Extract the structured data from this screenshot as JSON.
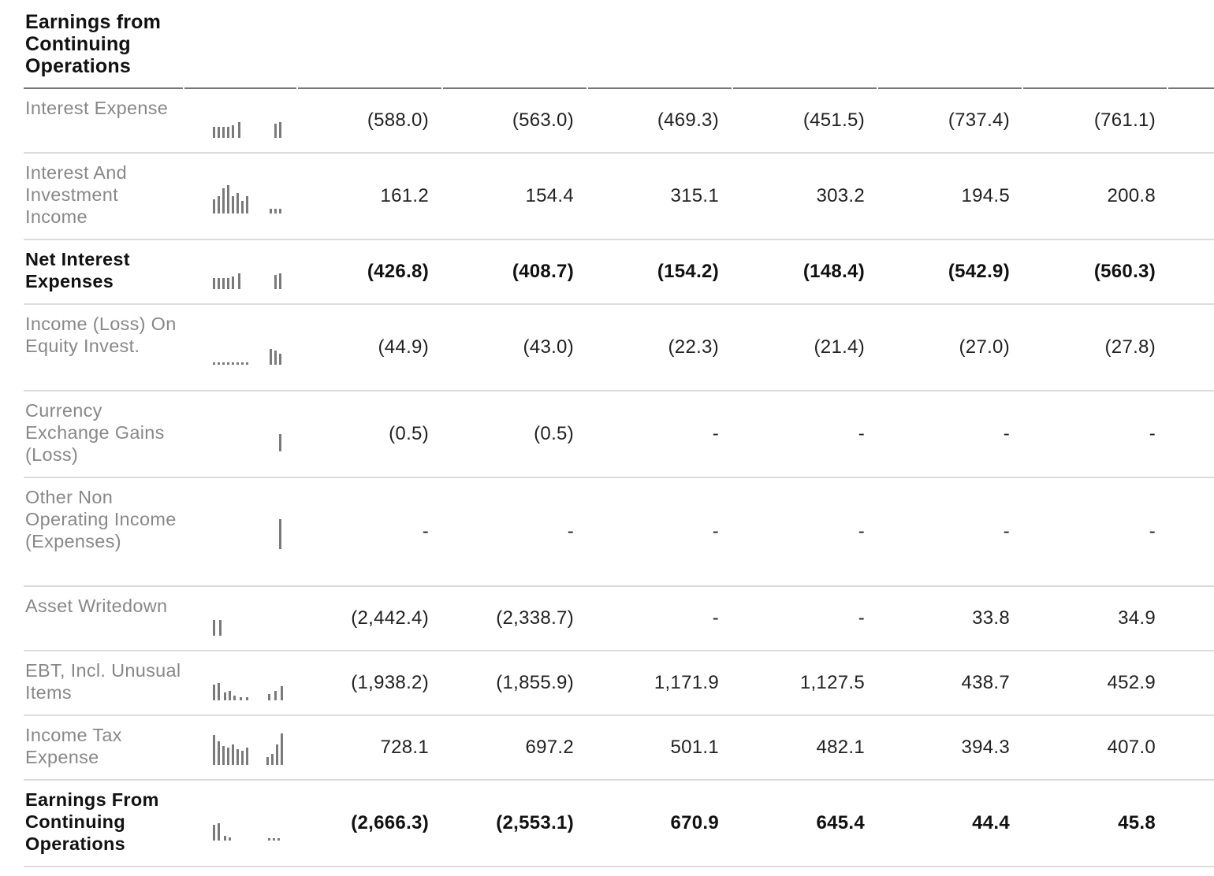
{
  "header": {
    "title": "Earnings from Continuing Operations"
  },
  "rows": [
    {
      "label": "Interest Expense",
      "bold": false,
      "sparkline": "bars-mixed",
      "values": [
        "(588.0)",
        "(563.0)",
        "(469.3)",
        "(451.5)",
        "(737.4)",
        "(761.1)"
      ]
    },
    {
      "label": "Interest And Investment Income",
      "bold": false,
      "sparkline": "bars-rising",
      "values": [
        "161.2",
        "154.4",
        "315.1",
        "303.2",
        "194.5",
        "200.8"
      ]
    },
    {
      "label": "Net Interest Expenses",
      "bold": true,
      "sparkline": "bars-mixed",
      "values": [
        "(426.8)",
        "(408.7)",
        "(154.2)",
        "(148.4)",
        "(542.9)",
        "(560.3)"
      ]
    },
    {
      "label": "Income (Loss) On Equity Invest.",
      "bold": false,
      "sparkline": "dots-flat",
      "values": [
        "(44.9)",
        "(43.0)",
        "(22.3)",
        "(21.4)",
        "(27.0)",
        "(27.8)"
      ]
    },
    {
      "label": "Currency Exchange Gains (Loss)",
      "bold": false,
      "sparkline": "single-bar",
      "values": [
        "(0.5)",
        "(0.5)",
        "-",
        "-",
        "-",
        "-"
      ]
    },
    {
      "label": "Other Non Operating Income (Expenses)",
      "bold": false,
      "sparkline": "single-tall-bar",
      "values": [
        "-",
        "-",
        "-",
        "-",
        "-",
        "-"
      ]
    },
    {
      "label": "Asset Writedown",
      "bold": false,
      "sparkline": "two-bars",
      "values": [
        "(2,442.4)",
        "(2,338.7)",
        "-",
        "-",
        "33.8",
        "34.9"
      ]
    },
    {
      "label": "EBT, Incl. Unusual Items",
      "bold": false,
      "sparkline": "bars-varied",
      "values": [
        "(1,938.2)",
        "(1,855.9)",
        "1,171.9",
        "1,127.5",
        "438.7",
        "452.9"
      ]
    },
    {
      "label": "Income Tax Expense",
      "bold": false,
      "sparkline": "bars-tall",
      "values": [
        "728.1",
        "697.2",
        "501.1",
        "482.1",
        "394.3",
        "407.0"
      ]
    },
    {
      "label": "Earnings From Continuing Operations",
      "bold": true,
      "sparkline": "bars-low",
      "values": [
        "(2,666.3)",
        "(2,553.1)",
        "670.9",
        "645.4",
        "44.4",
        "45.8"
      ]
    }
  ]
}
